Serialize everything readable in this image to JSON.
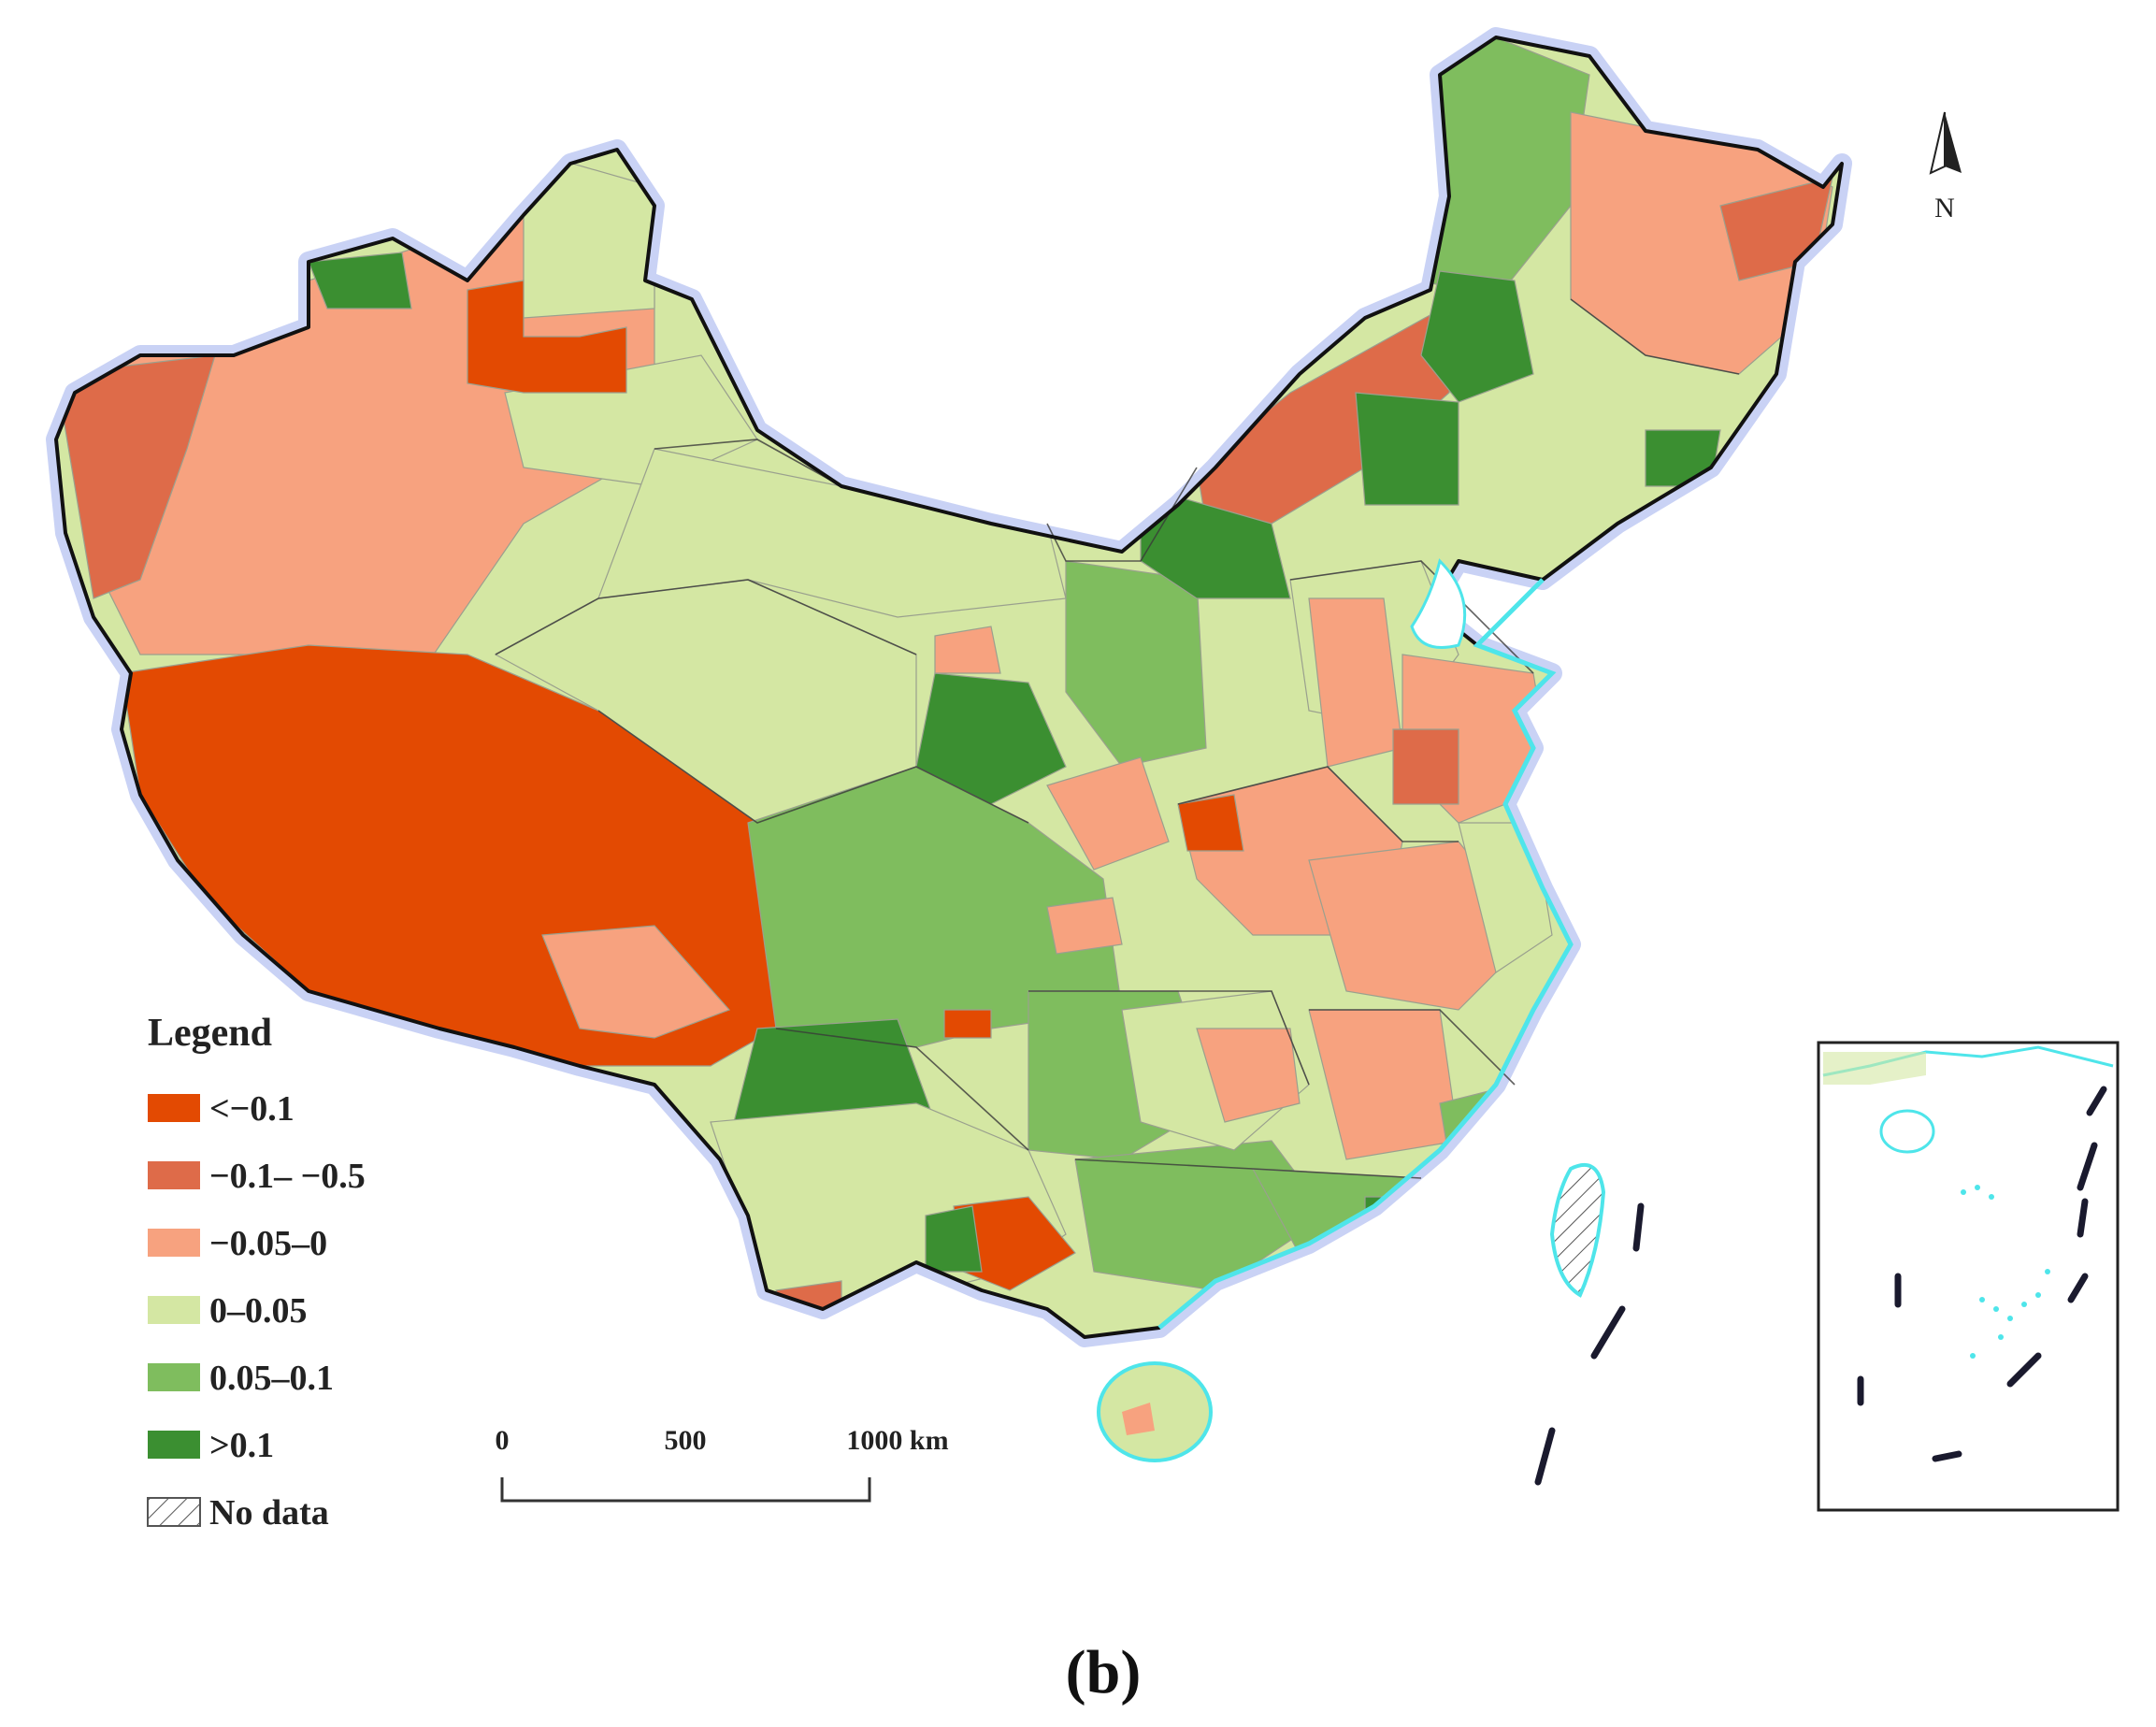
{
  "legend": {
    "title": "Legend",
    "items": [
      {
        "label": "<−0.1",
        "color": "#e34a02"
      },
      {
        "label": "−0.1– −0.5",
        "color": "#de6b49"
      },
      {
        "label": "−0.05–0",
        "color": "#f7a27f"
      },
      {
        "label": "0–0.05",
        "color": "#d4e7a3"
      },
      {
        "label": "0.05–0.1",
        "color": "#7fbd5e"
      },
      {
        "label": ">0.1",
        "color": "#3b8f31"
      },
      {
        "label": "No data",
        "color": "#ffffff"
      }
    ]
  },
  "scale_bar": {
    "ticks": [
      "0",
      "500",
      "1000 km"
    ]
  },
  "north_arrow": {
    "label": "N"
  },
  "caption": "(b)",
  "colors": {
    "coast": "#4ee5ea",
    "border_halo": "#c9d2f5",
    "border": "#111111"
  }
}
